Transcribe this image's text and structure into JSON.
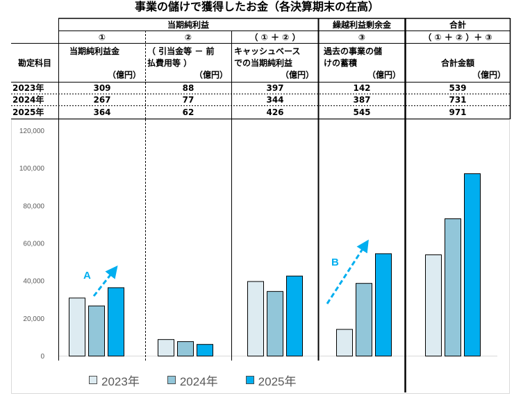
{
  "title": "事業の儲けで獲得したお金（各決算期末の在高）",
  "table": {
    "group_headers": {
      "current_profit": "当期純利益",
      "retained": "繰越利益剰余金",
      "total": "合計"
    },
    "col_markers": [
      "①",
      "②",
      "（ ① ＋ ② ）",
      "③",
      "（ ① ＋ ② ）＋ ③"
    ],
    "row_header": "勘定科目",
    "columns": [
      {
        "label_line1": "当期純利益金",
        "label_line2": "",
        "unit": "（億円）"
      },
      {
        "label_line1": "（ 引当金等 － 前",
        "label_line2": "払費用等 ）",
        "unit": "（億円）"
      },
      {
        "label_line1": "キャッシュベース",
        "label_line2": "での当期純利益",
        "unit": "（億円）"
      },
      {
        "label_line1": "過去の事業の儲",
        "label_line2": "けの蓄積",
        "unit": "（億円）"
      },
      {
        "label_line1": "",
        "label_line2": "合計金額",
        "unit": "（億円）"
      }
    ],
    "rows": [
      {
        "year": "2023年",
        "values": [
          "309",
          "88",
          "397",
          "142",
          "539"
        ]
      },
      {
        "year": "2024年",
        "values": [
          "267",
          "77",
          "344",
          "387",
          "731"
        ]
      },
      {
        "year": "2025年",
        "values": [
          "364",
          "62",
          "426",
          "545",
          "971"
        ]
      }
    ]
  },
  "chart_data": {
    "type": "bar",
    "title": "",
    "xlabel": "",
    "ylabel": "",
    "ylim": [
      0,
      120000
    ],
    "yticks": [
      "0",
      "20,000",
      "40,000",
      "60,000",
      "80,000",
      "100,000",
      "120,000"
    ],
    "categories": [
      "①",
      "②",
      "（①＋②）",
      "③",
      "（①＋②）＋③"
    ],
    "series": [
      {
        "name": "2023年",
        "color": "#DDEBF1",
        "values": [
          30900,
          8800,
          39700,
          14200,
          53900
        ]
      },
      {
        "name": "2024年",
        "color": "#92C6D9",
        "values": [
          26700,
          7700,
          34400,
          38700,
          73100
        ]
      },
      {
        "name": "2025年",
        "color": "#00AEEF",
        "values": [
          36400,
          6200,
          42600,
          54500,
          97100
        ]
      }
    ],
    "annotations": [
      {
        "text": "A",
        "color": "#00AEEF"
      },
      {
        "text": "B",
        "color": "#00AEEF"
      }
    ],
    "grid": false,
    "legend_position": "bottom"
  }
}
